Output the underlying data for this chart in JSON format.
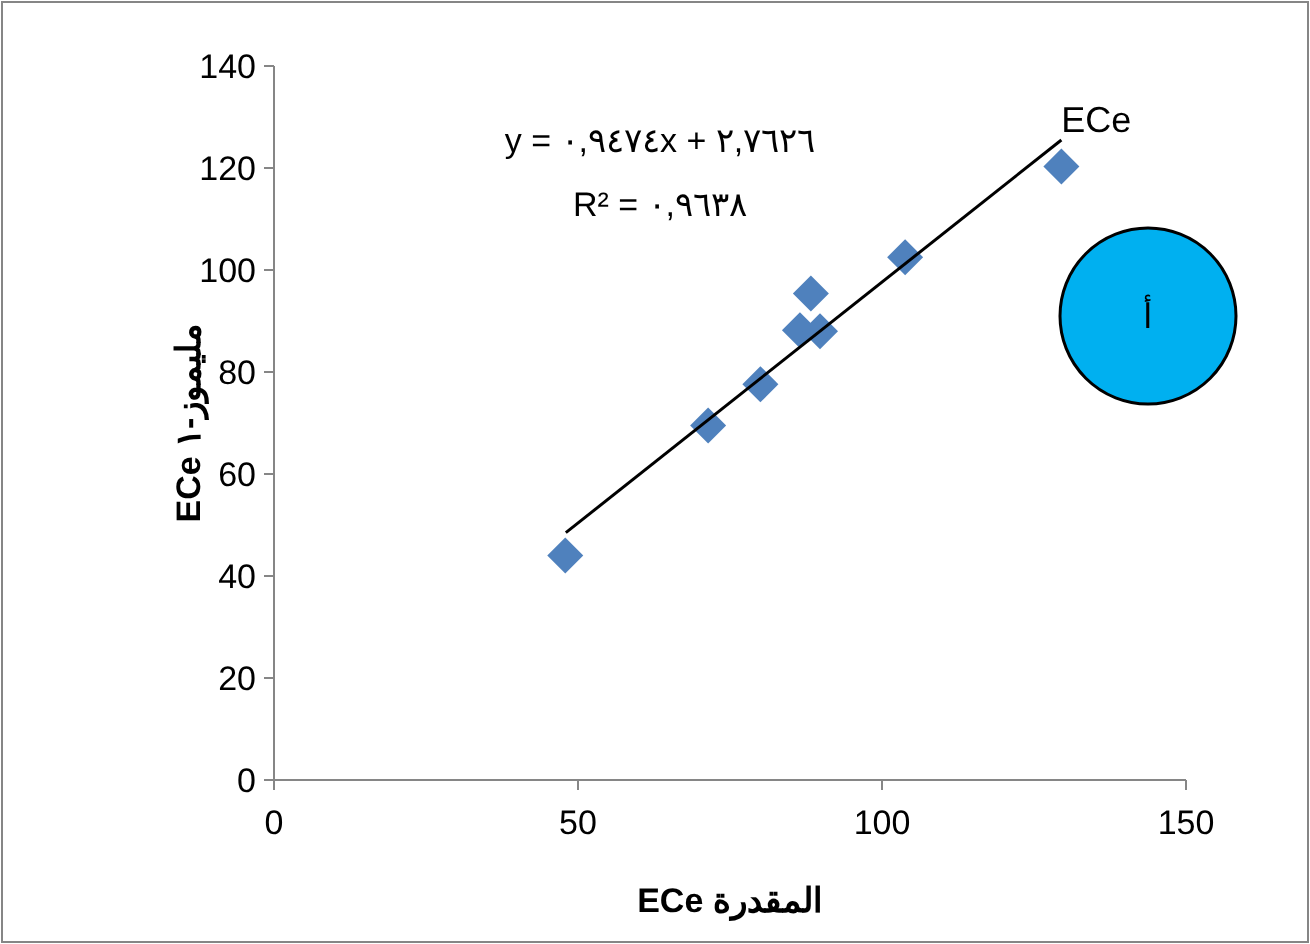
{
  "chart_data": {
    "type": "scatter",
    "xlabel": "ECe المقدرة",
    "ylabel": "ECe مليموز-١",
    "xlim": [
      0,
      150
    ],
    "ylim": [
      0,
      140
    ],
    "xticks": [
      0,
      50,
      100,
      150
    ],
    "yticks": [
      0,
      20,
      40,
      60,
      80,
      100,
      120,
      140
    ],
    "series": [
      {
        "type": "scatter",
        "color": "#4f81bd",
        "marker": "diamond",
        "x": [
          47.9,
          71.4,
          80.0,
          86.5,
          88.3,
          89.8,
          103.8,
          129.5
        ],
        "values": [
          44.0,
          69.5,
          77.6,
          88.2,
          95.4,
          88.0,
          102.5,
          120.3
        ]
      },
      {
        "type": "line",
        "name": "ECe",
        "color": "#000000",
        "marker": "none",
        "x": [
          48,
          129.5
        ],
        "values": [
          48.5,
          125.5
        ]
      }
    ],
    "annotations": [
      "y = ٠,٩٤٧٤x + ٢,٧٦٢٦",
      "R² = ٠,٩٦٣٨",
      "أ"
    ]
  }
}
